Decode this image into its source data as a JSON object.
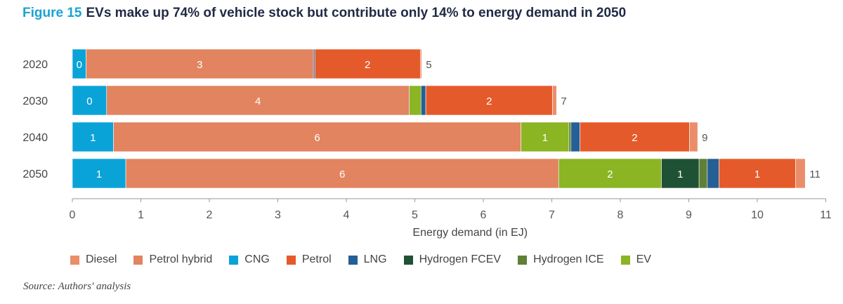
{
  "title": {
    "figure_label": "Figure 15",
    "text": "EVs make up 74% of vehicle stock but contribute only 14% to energy demand in 2050"
  },
  "source": "Source: Authors' analysis",
  "chart_data": {
    "type": "bar",
    "orientation": "horizontal",
    "stacked": true,
    "categories": [
      "2020",
      "2030",
      "2040",
      "2050"
    ],
    "xlabel": "Energy demand (in EJ)",
    "xlim": [
      0,
      11
    ],
    "xticks": [
      0,
      1,
      2,
      3,
      4,
      5,
      6,
      7,
      8,
      9,
      10,
      11
    ],
    "grid": false,
    "legend_position": "bottom",
    "series": [
      {
        "name": "CNG",
        "color": "#0aa3d8",
        "values": [
          0.2,
          0.5,
          0.6,
          0.78
        ],
        "labels": [
          "0",
          "0",
          "1",
          "1"
        ]
      },
      {
        "name": "Petrol hybrid",
        "color": "#e2845f",
        "values": [
          3.32,
          4.42,
          5.95,
          6.32
        ],
        "labels": [
          "3",
          "4",
          "6",
          "6"
        ]
      },
      {
        "name": "EV",
        "color": "#8bb523",
        "values": [
          0.0,
          0.17,
          0.7,
          1.5
        ],
        "labels": [
          "",
          "",
          "1",
          "2"
        ]
      },
      {
        "name": "Hydrogen FCEV",
        "color": "#1f5235",
        "values": [
          0.0,
          0.0,
          0.0,
          0.55
        ],
        "labels": [
          "",
          "",
          "",
          "1"
        ]
      },
      {
        "name": "Hydrogen ICE",
        "color": "#5f8036",
        "values": [
          0.0,
          0.0,
          0.03,
          0.12
        ],
        "labels": [
          "",
          "",
          "",
          ""
        ]
      },
      {
        "name": "LNG",
        "color": "#245f96",
        "values": [
          0.02,
          0.07,
          0.13,
          0.17
        ],
        "labels": [
          "",
          "",
          "",
          ""
        ]
      },
      {
        "name": "Petrol",
        "color": "#e55a2b",
        "values": [
          1.54,
          1.85,
          1.6,
          1.12
        ],
        "labels": [
          "2",
          "2",
          "2",
          "1"
        ]
      },
      {
        "name": "Diesel",
        "color": "#ea8e6a",
        "values": [
          0.02,
          0.06,
          0.12,
          0.14
        ],
        "labels": [
          "",
          "",
          "",
          ""
        ]
      }
    ],
    "totals": [
      "5",
      "7",
      "9",
      "11"
    ],
    "legend_order": [
      "Diesel",
      "Petrol hybrid",
      "CNG",
      "Petrol",
      "LNG",
      "Hydrogen FCEV",
      "Hydrogen ICE",
      "EV"
    ]
  }
}
